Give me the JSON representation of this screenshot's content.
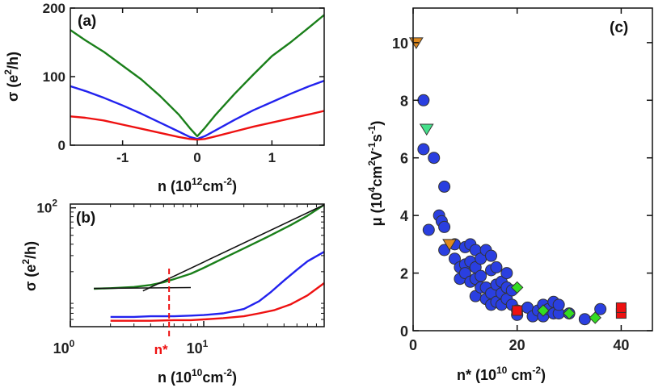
{
  "chart_data": [
    {
      "panel": "(a)",
      "type": "line",
      "xlabel": "n (10",
      "xlabel_sup": "12",
      "xlabel_unit": "cm",
      "xlabel_sup2": "-2",
      "xlabel_end": ")",
      "ylabel": "σ (e",
      "ylabel_sup": "2",
      "ylabel_end": "/h)",
      "xlim": [
        -1.7,
        1.7
      ],
      "ylim": [
        0,
        200
      ],
      "xticks": [
        "-1",
        "0",
        "1"
      ],
      "yticks": [
        "0",
        "100",
        "200"
      ],
      "series": [
        {
          "name": "green",
          "color": "#1a7f1a",
          "x": [
            -1.7,
            -1.5,
            -1.25,
            -1.0,
            -0.75,
            -0.5,
            -0.25,
            -0.1,
            0.0,
            0.1,
            0.25,
            0.5,
            0.75,
            1.0,
            1.25,
            1.5,
            1.7
          ],
          "y": [
            168,
            153,
            136,
            116,
            96,
            72,
            45,
            25,
            13,
            25,
            45,
            75,
            103,
            130,
            150,
            172,
            190
          ]
        },
        {
          "name": "blue",
          "color": "#2222ee",
          "x": [
            -1.7,
            -1.5,
            -1.25,
            -1.0,
            -0.75,
            -0.5,
            -0.25,
            -0.1,
            0.0,
            0.1,
            0.25,
            0.5,
            0.75,
            1.0,
            1.25,
            1.5,
            1.7
          ],
          "y": [
            86,
            79,
            69,
            58,
            46,
            33,
            20,
            12,
            9,
            13,
            22,
            37,
            51,
            63,
            75,
            86,
            94
          ]
        },
        {
          "name": "red",
          "color": "#ee1111",
          "x": [
            -1.7,
            -1.5,
            -1.25,
            -1.0,
            -0.75,
            -0.5,
            -0.25,
            -0.1,
            0.0,
            0.1,
            0.25,
            0.5,
            0.75,
            1.0,
            1.25,
            1.5,
            1.7
          ],
          "y": [
            42,
            40,
            36,
            30,
            24,
            18,
            12,
            9,
            8,
            9,
            13,
            20,
            27,
            33,
            39,
            45,
            50
          ]
        }
      ]
    },
    {
      "panel": "(b)",
      "type": "line",
      "xscale": "log",
      "yscale": "log",
      "xlabel": "n (10",
      "xlabel_sup": "10",
      "xlabel_unit": "cm",
      "xlabel_sup2": "-2",
      "xlabel_end": ")",
      "ylabel": "σ (e",
      "ylabel_sup": "2",
      "ylabel_end": "/h)",
      "xlim": [
        1,
        80
      ],
      "ylim": [
        5,
        110
      ],
      "xtick_values": [
        1,
        10
      ],
      "xticks_base": [
        "10",
        "10"
      ],
      "xticks_exp": [
        "0",
        "1"
      ],
      "ytick_values": [
        100
      ],
      "yticks_base": [
        "10"
      ],
      "yticks_exp": [
        "2"
      ],
      "marker_label": "n*",
      "marker_x": 5.5,
      "series": [
        {
          "name": "green",
          "color": "#1a7f1a",
          "x": [
            1.5,
            2,
            3,
            4,
            5,
            6,
            8,
            10,
            14,
            20,
            30,
            45,
            60,
            80
          ],
          "y": [
            13,
            13.2,
            13.6,
            14.3,
            15.3,
            16.6,
            19,
            22,
            28,
            36,
            48,
            65,
            82,
            108
          ]
        },
        {
          "name": "blue",
          "color": "#2222ee",
          "x": [
            2,
            3,
            4,
            6,
            8,
            10,
            14,
            20,
            26,
            32,
            40,
            50,
            60,
            80
          ],
          "y": [
            6.4,
            6.4,
            6.5,
            6.5,
            6.6,
            6.7,
            7,
            7.8,
            9.5,
            12,
            16,
            21,
            26,
            33
          ]
        },
        {
          "name": "red",
          "color": "#ee1111",
          "x": [
            2,
            3,
            4,
            6,
            8,
            10,
            14,
            20,
            26,
            34,
            45,
            60,
            80
          ],
          "y": [
            5.8,
            5.8,
            5.8,
            5.9,
            5.9,
            6,
            6.2,
            6.5,
            7,
            7.6,
            8.8,
            11,
            15
          ]
        },
        {
          "name": "fit-flat",
          "color": "#111111",
          "x": [
            1.5,
            8
          ],
          "y": [
            13.1,
            13.4
          ]
        },
        {
          "name": "fit-rise",
          "color": "#111111",
          "x": [
            3.5,
            80
          ],
          "y": [
            12.3,
            108
          ]
        }
      ]
    },
    {
      "panel": "(c)",
      "type": "scatter",
      "xlabel": "n* (10",
      "xlabel_sup": "10",
      "xlabel_unit": " cm",
      "xlabel_sup2": "-2",
      "xlabel_end": ")",
      "ylabel": "μ (10",
      "ylabel_sup": "4",
      "ylabel_unit": "cm",
      "ylabel_sup2": "2",
      "ylabel_unit2": "V",
      "ylabel_sup3": "-1",
      "ylabel_unit3": "s",
      "ylabel_sup4": "-1",
      "ylabel_end": ")",
      "xlim": [
        0,
        46
      ],
      "ylim": [
        0,
        11.2
      ],
      "xticks": [
        "0",
        "20",
        "40"
      ],
      "yticks": [
        "0",
        "2",
        "4",
        "6",
        "8",
        "10"
      ],
      "series": [
        {
          "name": "circles",
          "marker": "circle",
          "color": "#2a3fe0",
          "x": [
            2,
            2,
            3,
            4,
            5,
            5.5,
            6,
            6,
            6,
            8,
            8,
            9,
            9,
            10,
            10,
            10,
            11,
            11,
            11,
            12,
            12,
            12,
            12,
            13,
            13,
            13,
            14,
            14,
            14,
            15,
            15,
            15,
            15,
            16,
            16,
            16,
            17,
            17,
            17,
            18,
            18,
            18,
            19,
            19,
            20,
            20,
            22,
            23,
            24,
            25,
            25,
            26,
            27,
            27,
            28,
            28,
            30,
            33,
            36
          ],
          "y": [
            8,
            6.3,
            3.5,
            6,
            4,
            3.8,
            5,
            3.6,
            2.8,
            3,
            2.5,
            2.2,
            1.8,
            2.3,
            2.9,
            2,
            1.7,
            2.4,
            3,
            1.2,
            1.8,
            2.2,
            2.8,
            1.5,
            1.9,
            2.5,
            1.1,
            1.5,
            2.8,
            0.9,
            1.3,
            2.1,
            2.6,
            1.0,
            1.6,
            2.2,
            0.9,
            1.3,
            1.7,
            1.1,
            1.5,
            2,
            0.9,
            1.4,
            0.7,
            0.55,
            0.8,
            0.5,
            0.7,
            0.5,
            0.9,
            0.75,
            0.6,
            1.0,
            0.6,
            0.9,
            0.6,
            0.4,
            0.75
          ]
        },
        {
          "name": "orange-triangles",
          "marker": "triangle-down",
          "color": "#e08a1e",
          "x": [
            0.6,
            7
          ],
          "y": [
            10,
            3
          ]
        },
        {
          "name": "green-triangles",
          "marker": "triangle-down",
          "color": "#44e08a",
          "x": [
            2.6
          ],
          "y": [
            7
          ]
        },
        {
          "name": "green-diamonds",
          "marker": "diamond",
          "color": "#33dd22",
          "x": [
            20,
            25,
            30,
            35
          ],
          "y": [
            1.5,
            0.7,
            0.6,
            0.45
          ]
        },
        {
          "name": "red-squares",
          "marker": "square",
          "color": "#ee1111",
          "x": [
            20,
            40,
            40
          ],
          "y": [
            0.7,
            0.6,
            0.8
          ]
        }
      ]
    }
  ]
}
